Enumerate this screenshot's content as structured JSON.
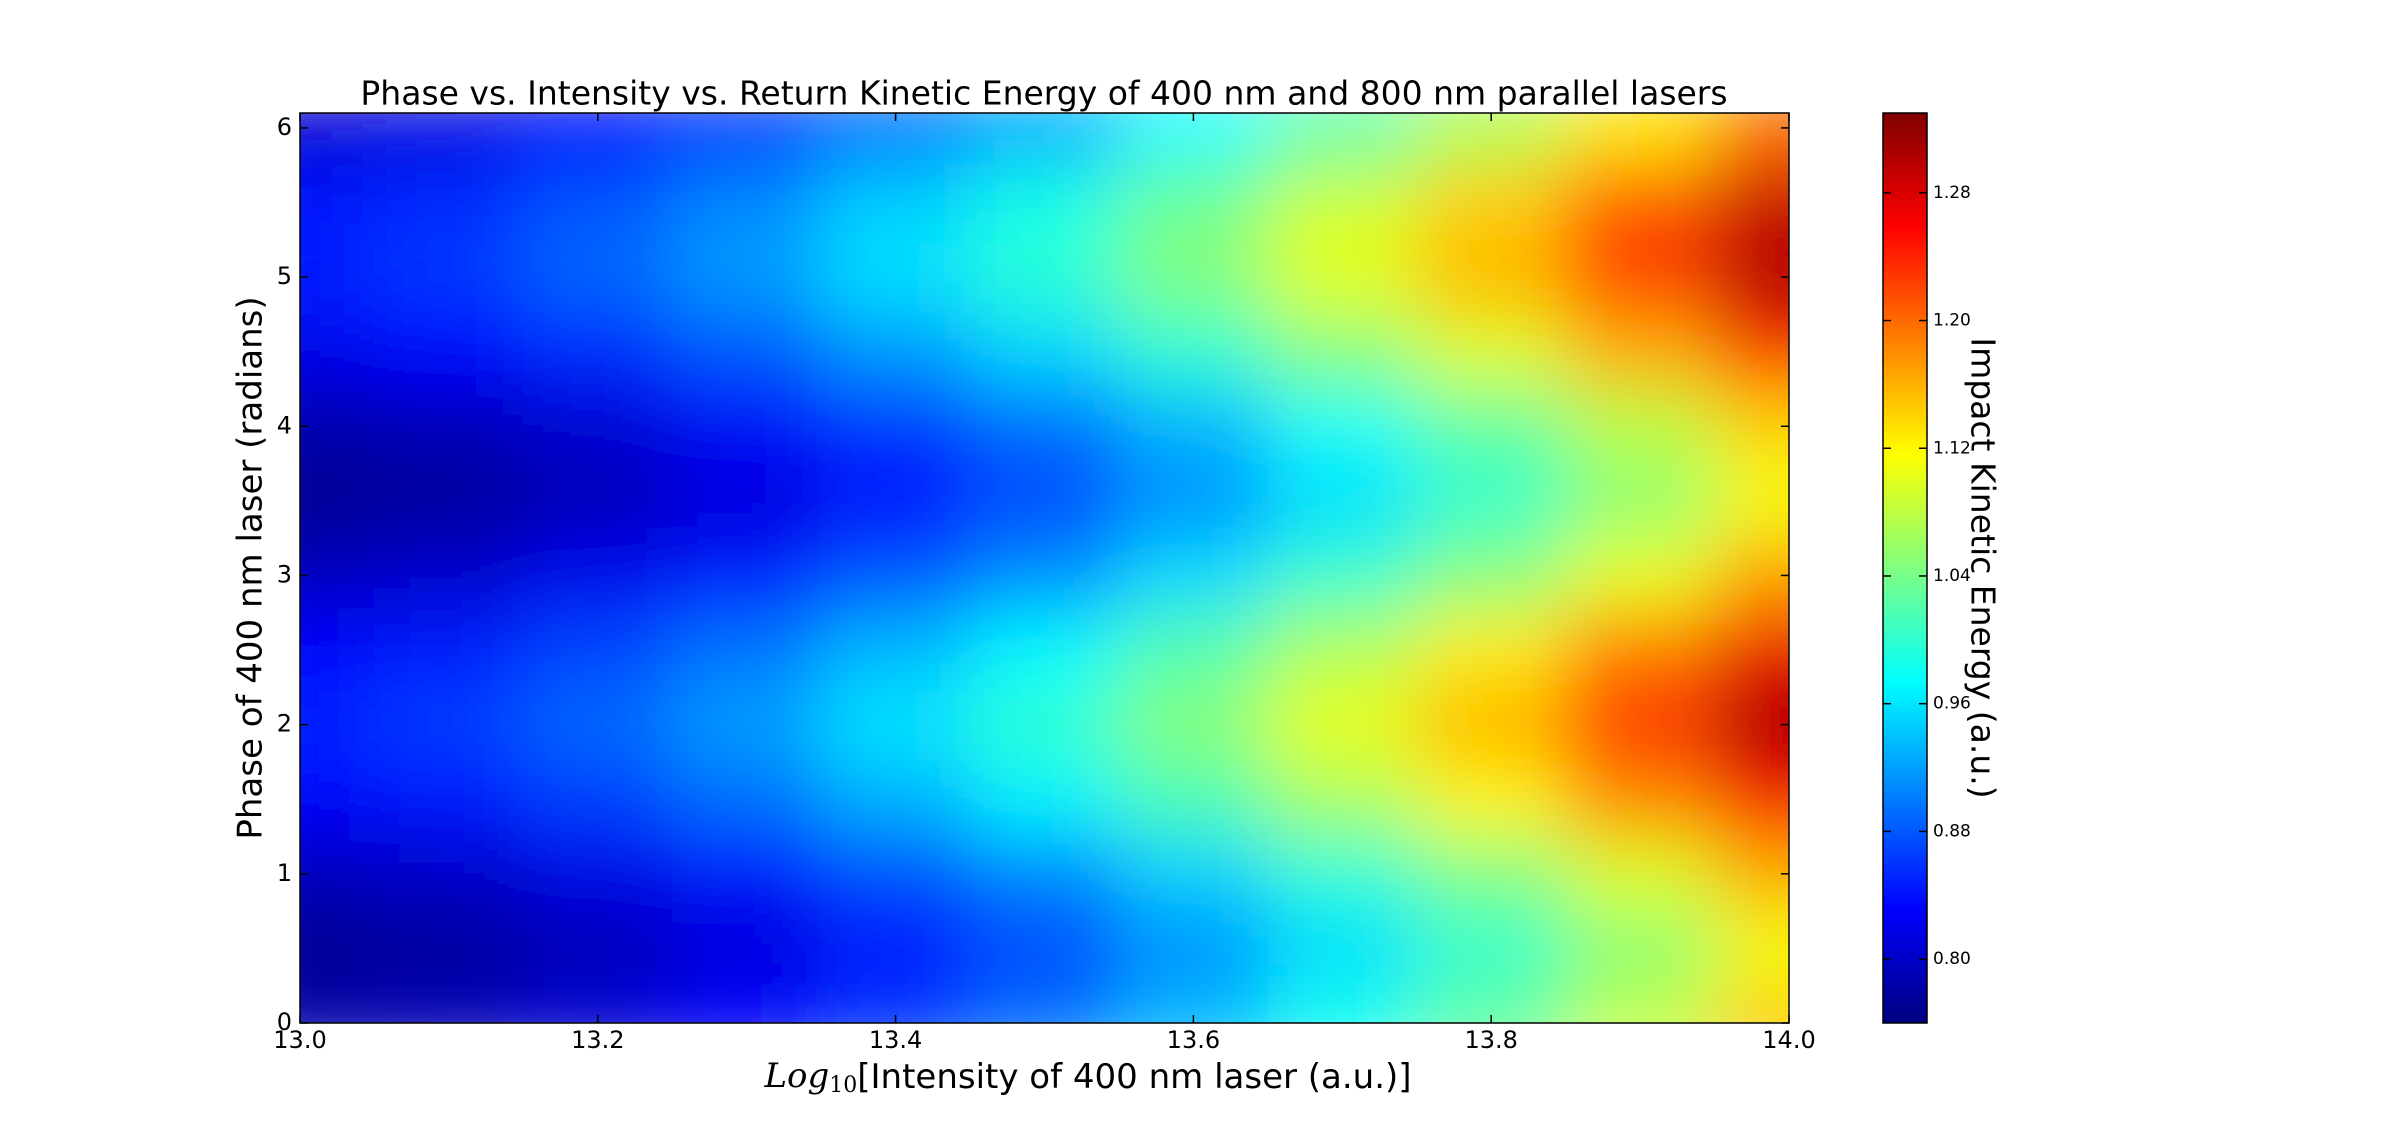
{
  "chart_data": {
    "type": "heatmap",
    "title": "Phase vs. Intensity vs. Return Kinetic Energy of 400 nm and 800 nm parallel lasers",
    "xlabel": {
      "prefix": "Log",
      "subscript": "10",
      "text": "[Intensity of 400 nm laser (a.u.)]"
    },
    "ylabel": "Phase of 400 nm laser (radians)",
    "colorbar_label": "Impact Kinetic Energy (a.u.)",
    "colormap": "jet",
    "x": [
      13.0,
      13.1,
      13.2,
      13.3,
      13.4,
      13.5,
      13.6,
      13.7,
      13.8,
      13.9,
      14.0
    ],
    "y": [
      0,
      0.5,
      1.0,
      1.5,
      2.0,
      2.5,
      3.0,
      3.5,
      4.0,
      4.5,
      5.0,
      5.5,
      6.0
    ],
    "z": [
      [
        0.785,
        0.792,
        0.809,
        0.831,
        0.863,
        0.895,
        0.936,
        0.983,
        1.03,
        1.084,
        1.148
      ],
      [
        0.77,
        0.775,
        0.79,
        0.81,
        0.84,
        0.87,
        0.91,
        0.955,
        1.0,
        1.05,
        1.11
      ],
      [
        0.792,
        0.8,
        0.817,
        0.84,
        0.873,
        0.905,
        0.948,
        0.996,
        1.044,
        1.099,
        1.165
      ],
      [
        0.83,
        0.843,
        0.865,
        0.893,
        0.93,
        0.968,
        1.015,
        1.068,
        1.12,
        1.185,
        1.261
      ],
      [
        0.85,
        0.865,
        0.89,
        0.92,
        0.96,
        1.0,
        1.05,
        1.105,
        1.16,
        1.23,
        1.31
      ],
      [
        0.833,
        0.846,
        0.869,
        0.897,
        0.935,
        0.972,
        1.02,
        1.073,
        1.126,
        1.192,
        1.268
      ],
      [
        0.795,
        0.803,
        0.821,
        0.844,
        0.877,
        0.91,
        0.954,
        1.002,
        1.05,
        1.106,
        1.172
      ],
      [
        0.771,
        0.776,
        0.791,
        0.811,
        0.841,
        0.871,
        0.911,
        0.956,
        1.001,
        1.052,
        1.112
      ],
      [
        0.783,
        0.789,
        0.806,
        0.828,
        0.859,
        0.891,
        0.932,
        0.979,
        1.026,
        1.079,
        1.142
      ],
      [
        0.82,
        0.831,
        0.852,
        0.878,
        0.915,
        0.951,
        0.997,
        1.048,
        1.099,
        1.162,
        1.234
      ],
      [
        0.848,
        0.863,
        0.888,
        0.918,
        0.957,
        0.997,
        1.047,
        1.102,
        1.157,
        1.226,
        1.306
      ],
      [
        0.842,
        0.856,
        0.88,
        0.909,
        0.948,
        0.987,
        1.036,
        1.09,
        1.144,
        1.212,
        1.29
      ],
      [
        0.805,
        0.815,
        0.834,
        0.858,
        0.893,
        0.927,
        0.972,
        1.021,
        1.07,
        1.129,
        1.198
      ]
    ],
    "xlim": [
      13.0,
      14.0
    ],
    "ylim": [
      0,
      6.1
    ],
    "xticks": [
      {
        "value": 13.0,
        "label": "13.0"
      },
      13.2,
      13.4,
      13.6,
      13.8,
      {
        "value": 14.0,
        "label": "14.0"
      }
    ],
    "yticks": [
      0,
      1,
      2,
      3,
      4,
      5,
      6
    ],
    "clim": [
      0.76,
      1.33
    ],
    "cticks": [
      {
        "value": 0.8,
        "label": "0.80"
      },
      0.88,
      0.96,
      1.04,
      {
        "value": 1.12,
        "label": "1.12"
      },
      {
        "value": 1.2,
        "label": "1.20"
      },
      1.28
    ]
  }
}
